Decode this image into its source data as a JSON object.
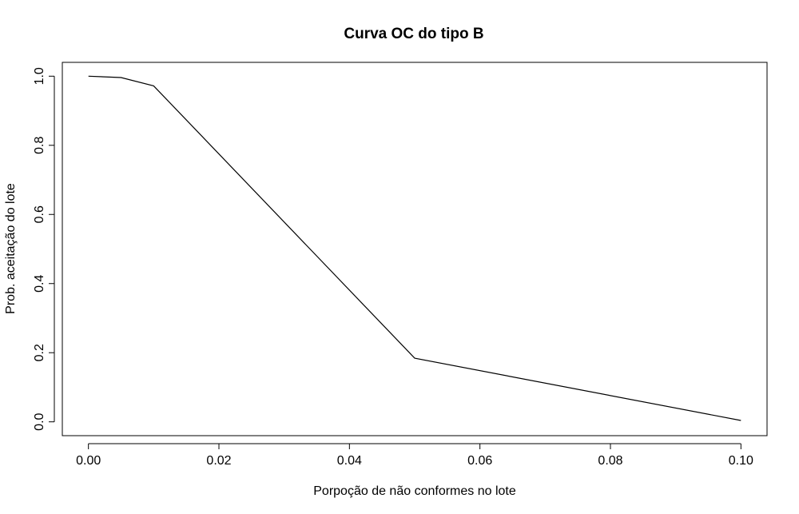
{
  "chart_data": {
    "type": "line",
    "title": "Curva OC do tipo B",
    "xlabel": "Porpoção de não conformes no lote",
    "ylabel": "Prob. aceitação do lote",
    "xlim": [
      -0.004,
      0.104
    ],
    "ylim": [
      -0.04,
      1.04
    ],
    "x_ticks": [
      0.0,
      0.02,
      0.04,
      0.06,
      0.08,
      0.1
    ],
    "x_tick_labels": [
      "0.00",
      "0.02",
      "0.04",
      "0.06",
      "0.08",
      "0.10"
    ],
    "y_ticks": [
      0.0,
      0.2,
      0.4,
      0.6,
      0.8,
      1.0
    ],
    "y_tick_labels": [
      "0.0",
      "0.2",
      "0.4",
      "0.6",
      "0.8",
      "1.0"
    ],
    "grid": false,
    "series": [
      {
        "color": "#000000",
        "x": [
          0.0,
          0.005,
          0.01,
          0.05,
          0.1
        ],
        "y": [
          1.0,
          0.996,
          0.972,
          0.184,
          0.004
        ]
      }
    ]
  }
}
